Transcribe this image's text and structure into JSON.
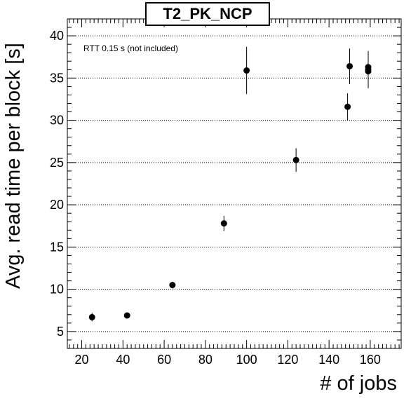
{
  "chart_data": {
    "type": "scatter",
    "title": "T2_PK_NCP",
    "xlabel": "# of jobs",
    "ylabel": "Avg. read time per block [s]",
    "annotation": "RTT 0.15 s (not included)",
    "xlim": [
      13,
      175
    ],
    "ylim": [
      3,
      42
    ],
    "xticks": [
      20,
      40,
      60,
      80,
      100,
      120,
      140,
      160
    ],
    "yticks": [
      5,
      10,
      15,
      20,
      25,
      30,
      35,
      40
    ],
    "grid": "horizontal dotted",
    "points": [
      {
        "x": 25,
        "y": 6.7,
        "err": 0.5
      },
      {
        "x": 42,
        "y": 6.9,
        "err": 0.3
      },
      {
        "x": 64,
        "y": 10.5,
        "err": 0.4
      },
      {
        "x": 89,
        "y": 17.8,
        "err": 0.9
      },
      {
        "x": 100,
        "y": 35.9,
        "err": 2.8
      },
      {
        "x": 124,
        "y": 25.3,
        "err": 1.4
      },
      {
        "x": 149,
        "y": 31.6,
        "err": 1.6
      },
      {
        "x": 150,
        "y": 36.4,
        "err": 2.1
      },
      {
        "x": 159,
        "y": 36.3,
        "err": 1.9
      },
      {
        "x": 159,
        "y": 36.0,
        "err": 2.1
      },
      {
        "x": 159,
        "y": 35.8,
        "err": 2.0
      }
    ]
  }
}
